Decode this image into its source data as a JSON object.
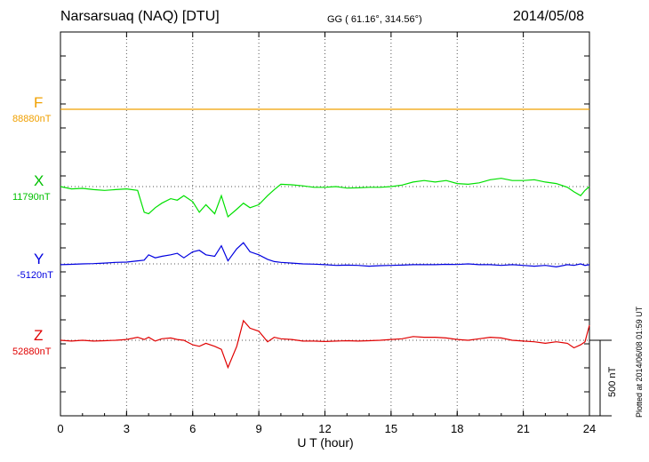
{
  "header": {
    "station": "Narsarsuaq (NAQ)  [DTU]",
    "coords": "GG ( 61.16°, 314.56°)",
    "date": "2014/05/08"
  },
  "side_note": "Plotted at 2014/06/08 01:59 UT",
  "scale_label": "500 nT",
  "chart_data": {
    "type": "line",
    "xlabel": "U T (hour)",
    "xlim": [
      0,
      24
    ],
    "xticks": [
      "0",
      "3",
      "6",
      "9",
      "12",
      "15",
      "18",
      "21",
      "24"
    ],
    "series": [
      {
        "name": "F",
        "baseline": "88880nT",
        "color": "#f0a000",
        "x": [
          0,
          24
        ],
        "y": [
          0,
          0
        ]
      },
      {
        "name": "X",
        "baseline": "11790nT",
        "color": "#00e000",
        "x": [
          0,
          0.5,
          1,
          1.5,
          2,
          2.5,
          3,
          3.5,
          3.8,
          4,
          4.3,
          4.6,
          5,
          5.3,
          5.6,
          6,
          6.3,
          6.6,
          7,
          7.3,
          7.6,
          8,
          8.3,
          8.6,
          9,
          9.4,
          9.7,
          10,
          10.5,
          11,
          11.5,
          12,
          12.5,
          13,
          13.5,
          14,
          14.5,
          15,
          15.5,
          16,
          16.5,
          17,
          17.5,
          18,
          18.5,
          19,
          19.5,
          20,
          20.5,
          21,
          21.5,
          22,
          22.5,
          23,
          23.3,
          23.6,
          23.8,
          24
        ],
        "y": [
          0,
          -15,
          -12,
          -20,
          -25,
          -20,
          -15,
          -25,
          -170,
          -180,
          -140,
          -110,
          -80,
          -90,
          -60,
          -100,
          -170,
          -120,
          -180,
          -60,
          -200,
          -150,
          -110,
          -140,
          -120,
          -60,
          -20,
          15,
          12,
          5,
          -5,
          -5,
          0,
          -10,
          -8,
          -5,
          -5,
          0,
          10,
          30,
          40,
          30,
          40,
          20,
          15,
          25,
          45,
          55,
          40,
          40,
          45,
          30,
          20,
          -5,
          -35,
          -60,
          -25,
          0
        ]
      },
      {
        "name": "Y",
        "baseline": "-5120nT",
        "color": "#0000e0",
        "x": [
          0,
          0.5,
          1,
          1.5,
          2,
          2.5,
          3,
          3.5,
          3.8,
          4,
          4.3,
          4.6,
          5,
          5.3,
          5.6,
          6,
          6.3,
          6.6,
          7,
          7.3,
          7.6,
          8,
          8.3,
          8.6,
          9,
          9.4,
          9.7,
          10,
          10.5,
          11,
          11.5,
          12,
          12.5,
          13,
          13.5,
          14,
          14.5,
          15,
          15.5,
          16,
          16.5,
          17,
          17.5,
          18,
          18.5,
          19,
          19.5,
          20,
          20.5,
          21,
          21.5,
          22,
          22.5,
          23,
          23.3,
          23.6,
          23.8,
          24
        ],
        "y": [
          -5,
          -3,
          0,
          2,
          5,
          10,
          12,
          20,
          25,
          60,
          40,
          50,
          60,
          70,
          40,
          80,
          90,
          60,
          50,
          120,
          20,
          100,
          140,
          80,
          60,
          30,
          15,
          10,
          5,
          0,
          -2,
          -5,
          -10,
          -8,
          -10,
          -15,
          -12,
          -10,
          -8,
          -5,
          -5,
          -5,
          -3,
          -4,
          0,
          -5,
          -5,
          -10,
          -5,
          -10,
          -15,
          -10,
          -20,
          -5,
          -10,
          0,
          -10,
          -5
        ]
      },
      {
        "name": "Z",
        "baseline": "52880nT",
        "color": "#e00000",
        "x": [
          0,
          0.5,
          1,
          1.5,
          2,
          2.5,
          3,
          3.5,
          3.8,
          4,
          4.3,
          4.6,
          5,
          5.3,
          5.6,
          6,
          6.3,
          6.6,
          7,
          7.3,
          7.6,
          8,
          8.3,
          8.6,
          9,
          9.4,
          9.7,
          10,
          10.5,
          11,
          11.5,
          12,
          12.5,
          13,
          13.5,
          14,
          14.5,
          15,
          15.5,
          16,
          16.5,
          17,
          17.5,
          18,
          18.5,
          19,
          19.5,
          20,
          20.5,
          21,
          21.5,
          22,
          22.5,
          23,
          23.3,
          23.6,
          23.8,
          24
        ],
        "y": [
          0,
          -5,
          0,
          -5,
          -3,
          0,
          5,
          20,
          5,
          20,
          -5,
          10,
          15,
          5,
          0,
          -30,
          -40,
          -20,
          -40,
          -60,
          -180,
          -40,
          130,
          80,
          60,
          -10,
          20,
          10,
          5,
          -5,
          -5,
          -8,
          -5,
          -3,
          -5,
          -3,
          0,
          5,
          10,
          25,
          20,
          20,
          15,
          5,
          0,
          10,
          20,
          15,
          0,
          -5,
          -10,
          -20,
          -10,
          -20,
          -50,
          -30,
          -10,
          100
        ]
      }
    ]
  }
}
